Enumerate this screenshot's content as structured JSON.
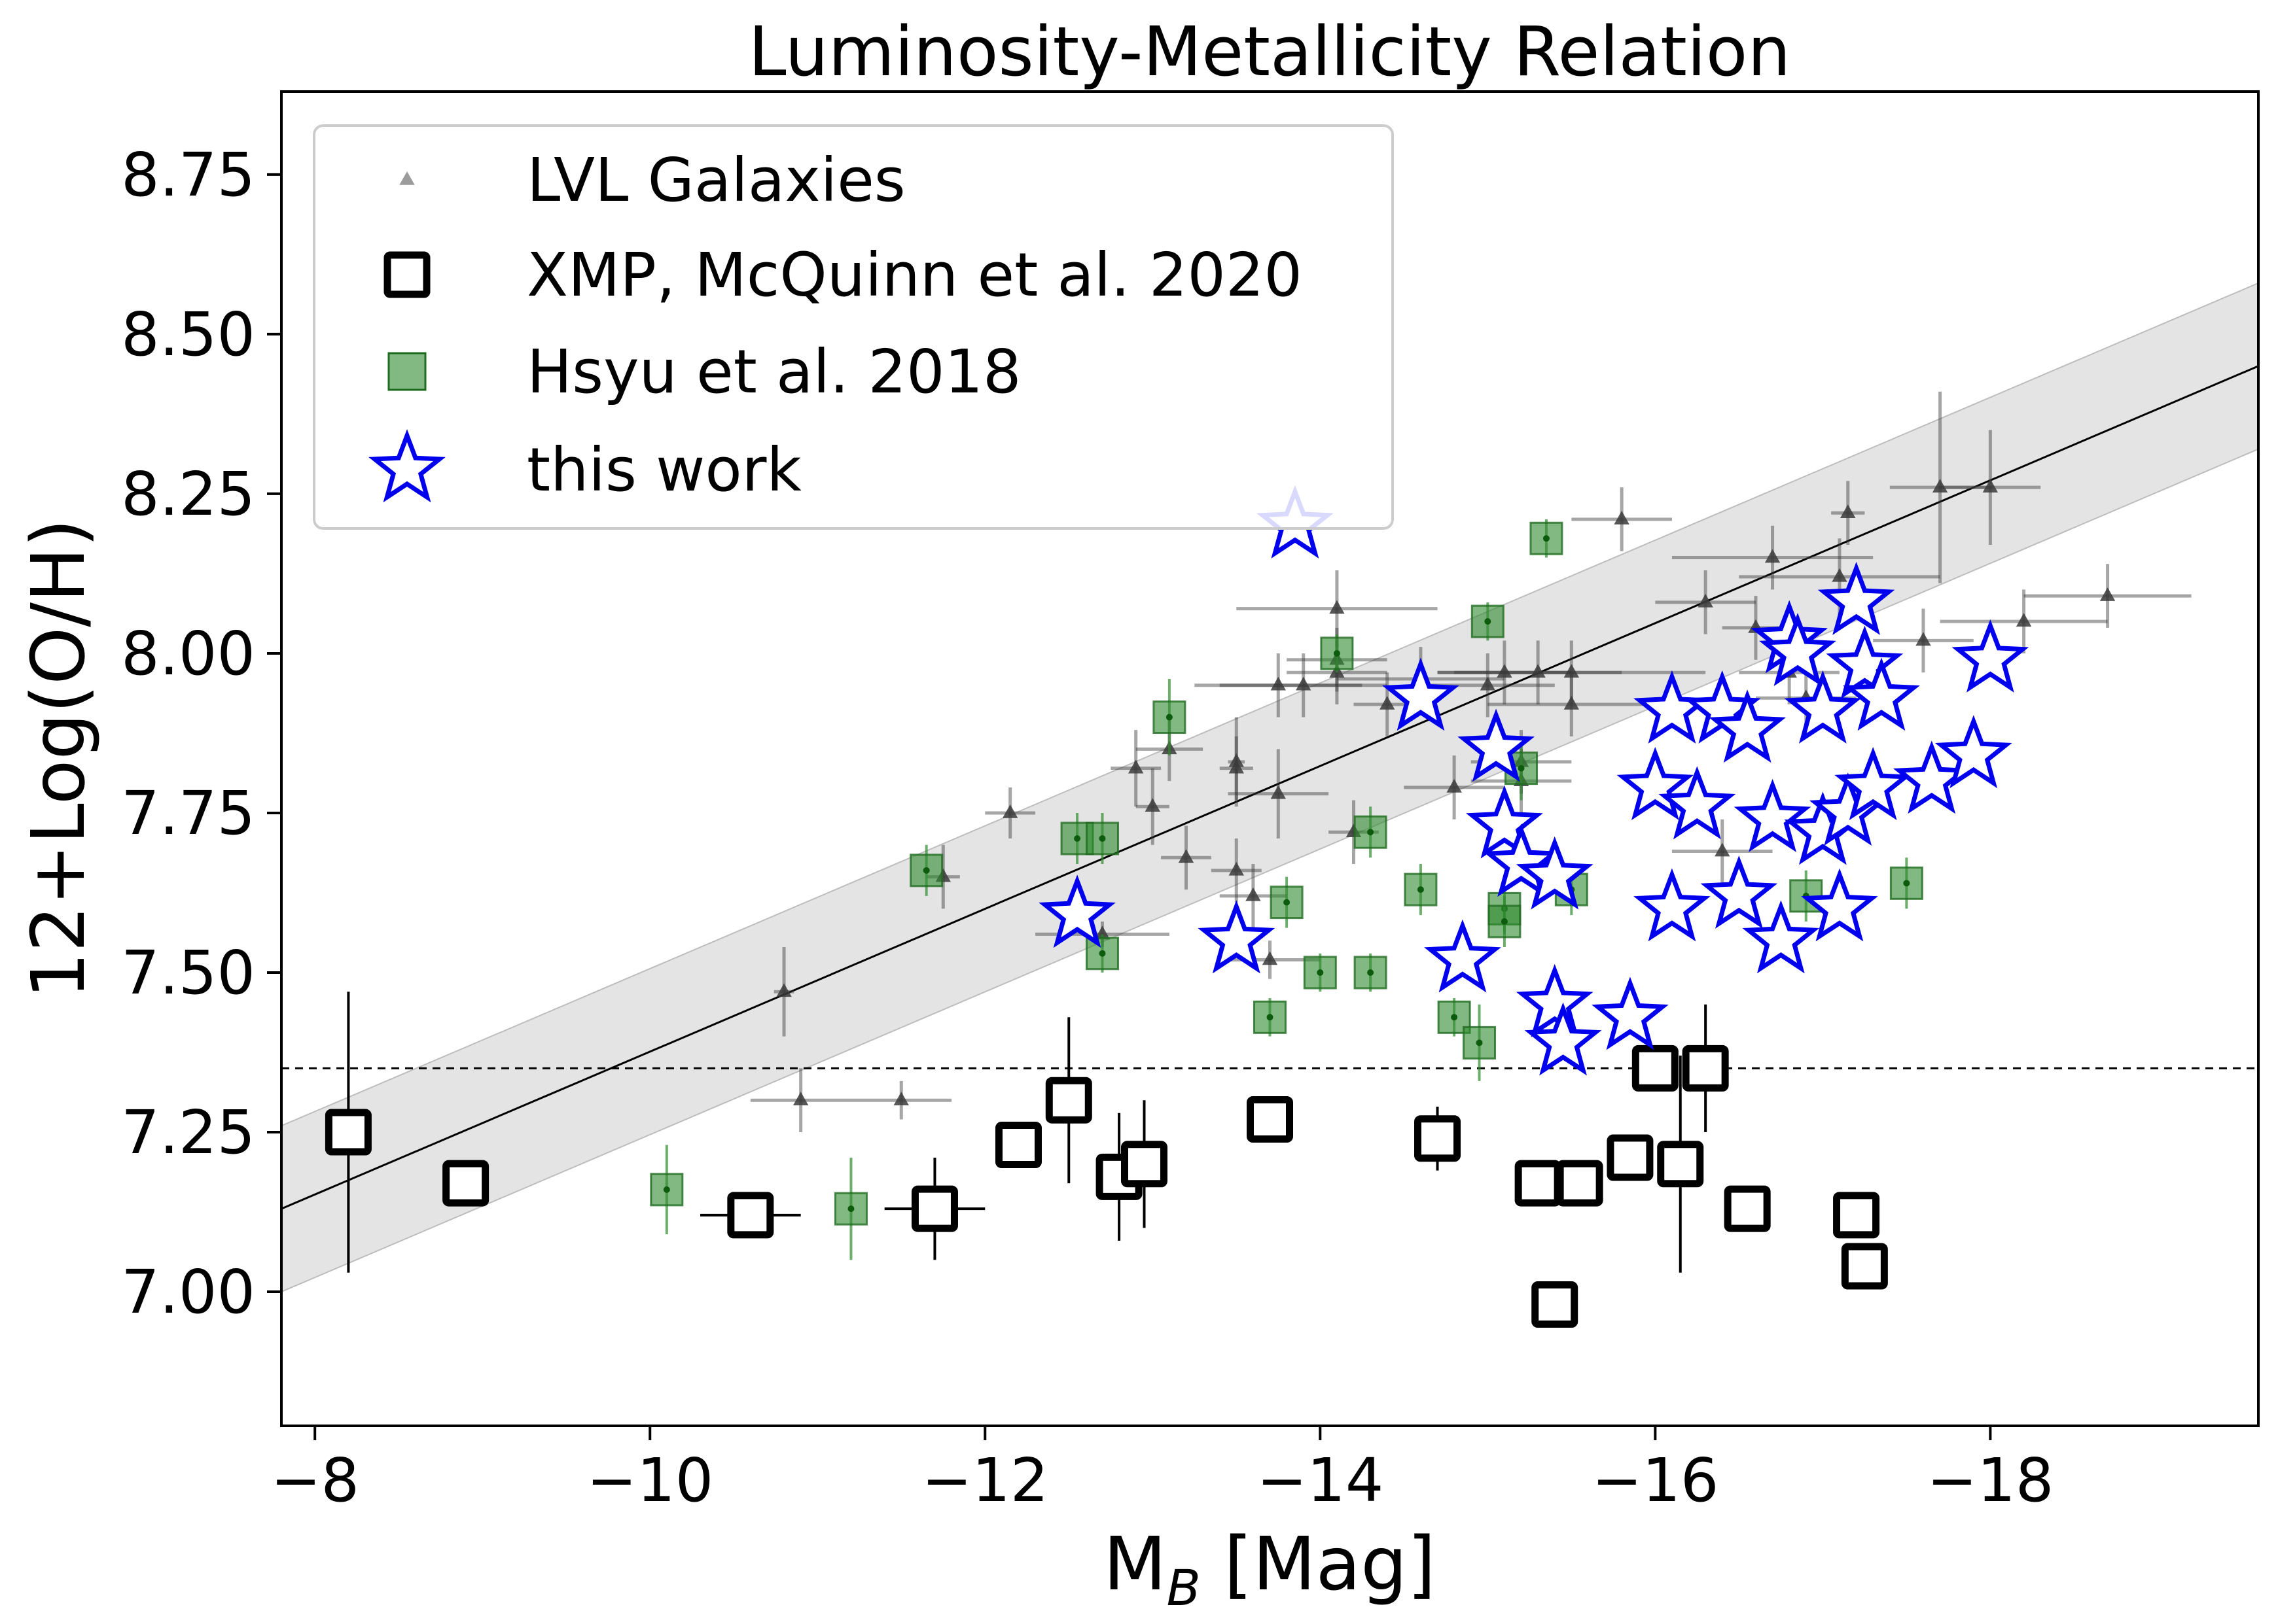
{
  "chart_data": {
    "type": "scatter",
    "title": "Luminosity-Metallicity Relation",
    "xlabel": {
      "main": "M",
      "sub": "B",
      "tail": " [Mag]"
    },
    "ylabel": "12+Log(O/H)",
    "xlim": [
      -7.8,
      -19.6
    ],
    "ylim": [
      6.79,
      8.88
    ],
    "x_inverted": true,
    "xticks": [
      -8,
      -10,
      -12,
      -14,
      -16,
      -18
    ],
    "xtick_labels": [
      "−8",
      "−10",
      "−12",
      "−14",
      "−16",
      "−18"
    ],
    "yticks": [
      7.0,
      7.25,
      7.5,
      7.75,
      8.0,
      8.25,
      8.5,
      8.75
    ],
    "ytick_labels": [
      "7.00",
      "7.25",
      "7.50",
      "7.75",
      "8.00",
      "8.25",
      "8.50",
      "8.75"
    ],
    "grid": false,
    "legend_placement": "top-left",
    "colors": {
      "lvl": "#3a3a3a",
      "xmp": "#000000",
      "hsyu": "#2e8b2e",
      "this_work": "#0000ee",
      "band": "#d9d9d9"
    },
    "fit_line": {
      "x": [
        -7.8,
        -19.6
      ],
      "y": [
        7.13,
        8.45
      ],
      "band_halfwidth": 0.13
    },
    "threshold_line": {
      "y": 7.35,
      "style": "dashed"
    },
    "series": [
      {
        "name": "LVL Galaxies",
        "marker": "triangle",
        "points": [
          [
            -10.8,
            7.47,
            0.06,
            0.07
          ],
          [
            -10.9,
            7.3,
            0.3,
            0.05
          ],
          [
            -11.5,
            7.3,
            0.3,
            0.03
          ],
          [
            -11.75,
            7.65,
            0.1,
            0.05
          ],
          [
            -12.15,
            7.75,
            0.15,
            0.04
          ],
          [
            -12.7,
            7.56,
            0.4,
            0.02
          ],
          [
            -12.9,
            7.82,
            0.15,
            0.06
          ],
          [
            -13.0,
            7.76,
            0.1,
            0.06
          ],
          [
            -13.1,
            7.85,
            0.2,
            0.05
          ],
          [
            -13.2,
            7.68,
            0.15,
            0.05
          ],
          [
            -13.5,
            7.83,
            0.05,
            0.07
          ],
          [
            -13.5,
            7.82,
            0.1,
            0.05
          ],
          [
            -13.5,
            7.66,
            0.15,
            0.05
          ],
          [
            -13.6,
            7.62,
            0.2,
            0.05
          ],
          [
            -13.7,
            7.52,
            0.3,
            0.03
          ],
          [
            -13.75,
            7.78,
            0.3,
            0.07
          ],
          [
            -13.75,
            7.95,
            0.5,
            0.05
          ],
          [
            -13.9,
            7.95,
            0.5,
            0.05
          ],
          [
            -14.1,
            8.07,
            0.6,
            0.06
          ],
          [
            -14.1,
            7.99,
            0.3,
            0.05
          ],
          [
            -14.1,
            7.97,
            0.3,
            0.05
          ],
          [
            -14.2,
            7.72,
            0.15,
            0.05
          ],
          [
            -14.4,
            7.92,
            0.2,
            0.05
          ],
          [
            -14.6,
            7.96,
            0.5,
            0.05
          ],
          [
            -14.8,
            7.79,
            0.3,
            0.05
          ],
          [
            -15.0,
            7.95,
            0.4,
            0.05
          ],
          [
            -15.1,
            7.97,
            0.4,
            0.05
          ],
          [
            -15.2,
            7.8,
            0.3,
            0.05
          ],
          [
            -15.2,
            7.83,
            0.3,
            0.05
          ],
          [
            -15.3,
            7.97,
            0.5,
            0.05
          ],
          [
            -15.5,
            7.97,
            0.8,
            0.05
          ],
          [
            -15.5,
            7.92,
            0.5,
            0.05
          ],
          [
            -15.8,
            8.21,
            0.3,
            0.05
          ],
          [
            -16.3,
            8.08,
            0.3,
            0.05
          ],
          [
            -16.4,
            7.69,
            0.3,
            0.05
          ],
          [
            -16.6,
            8.04,
            0.2,
            0.05
          ],
          [
            -16.7,
            8.15,
            0.6,
            0.05
          ],
          [
            -16.8,
            7.97,
            0.3,
            0.05
          ],
          [
            -16.9,
            7.93,
            0.3,
            0.05
          ],
          [
            -17.1,
            8.12,
            0.6,
            0.06
          ],
          [
            -17.15,
            8.22,
            0.1,
            0.05
          ],
          [
            -17.6,
            8.02,
            0.3,
            0.05
          ],
          [
            -17.7,
            8.26,
            0.3,
            0.15
          ],
          [
            -18.0,
            8.26,
            0.3,
            0.09
          ],
          [
            -18.2,
            8.05,
            0.5,
            0.05
          ],
          [
            -18.7,
            8.09,
            0.5,
            0.05
          ]
        ]
      },
      {
        "name": "XMP, McQuinn et al. 2020",
        "marker": "square-open",
        "points": [
          [
            -8.2,
            7.25,
            0,
            0.22
          ],
          [
            -8.9,
            7.17,
            0,
            0.03
          ],
          [
            -10.6,
            7.12,
            0.3,
            0.03
          ],
          [
            -11.7,
            7.13,
            0.3,
            0.08
          ],
          [
            -12.2,
            7.23,
            0,
            0.03
          ],
          [
            -12.5,
            7.3,
            0,
            0.13
          ],
          [
            -12.8,
            7.18,
            0,
            0.1
          ],
          [
            -12.95,
            7.2,
            0,
            0.1
          ],
          [
            -13.7,
            7.27,
            0,
            0.03
          ],
          [
            -14.7,
            7.24,
            0,
            0.05
          ],
          [
            -15.3,
            7.17,
            0,
            0.03
          ],
          [
            -15.55,
            7.17,
            0,
            0.03
          ],
          [
            -15.4,
            6.98,
            0,
            0.03
          ],
          [
            -15.85,
            7.21,
            0,
            0.03
          ],
          [
            -16.0,
            7.35,
            0,
            0.03
          ],
          [
            -16.3,
            7.35,
            0,
            0.1
          ],
          [
            -16.15,
            7.2,
            0,
            0.17
          ],
          [
            -16.55,
            7.13,
            0,
            0.03
          ],
          [
            -17.2,
            7.12,
            0,
            0.03
          ],
          [
            -17.25,
            7.04,
            0,
            0.03
          ]
        ]
      },
      {
        "name": "Hsyu et al. 2018",
        "marker": "square-filled",
        "points": [
          [
            -10.1,
            7.16,
            0,
            0.07
          ],
          [
            -11.2,
            7.13,
            0,
            0.08
          ],
          [
            -11.65,
            7.66,
            0,
            0.04
          ],
          [
            -12.55,
            7.71,
            0,
            0.04
          ],
          [
            -12.7,
            7.71,
            0,
            0.04
          ],
          [
            -12.7,
            7.53,
            0,
            0.03
          ],
          [
            -13.1,
            7.9,
            0,
            0.06
          ],
          [
            -13.8,
            7.61,
            0,
            0.04
          ],
          [
            -13.7,
            7.43,
            0,
            0.03
          ],
          [
            -14.0,
            7.5,
            0,
            0.03
          ],
          [
            -14.1,
            8.0,
            0,
            0.03
          ],
          [
            -14.3,
            7.5,
            0,
            0.03
          ],
          [
            -14.3,
            7.72,
            0,
            0.04
          ],
          [
            -14.6,
            7.63,
            0,
            0.04
          ],
          [
            -14.8,
            7.43,
            0,
            0.03
          ],
          [
            -14.95,
            7.39,
            0,
            0.06
          ],
          [
            -15.0,
            8.05,
            0,
            0.03
          ],
          [
            -15.1,
            7.6,
            0,
            0.04
          ],
          [
            -15.1,
            7.58,
            0,
            0.04
          ],
          [
            -15.2,
            7.82,
            0,
            0.05
          ],
          [
            -15.35,
            8.18,
            0,
            0.03
          ],
          [
            -15.5,
            7.63,
            0,
            0.04
          ],
          [
            -16.9,
            7.62,
            0,
            0.04
          ],
          [
            -17.5,
            7.64,
            0,
            0.04
          ]
        ]
      },
      {
        "name": "this work",
        "marker": "star-open",
        "points": [
          [
            -12.55,
            7.59
          ],
          [
            -13.5,
            7.55
          ],
          [
            -13.85,
            8.2
          ],
          [
            -14.6,
            7.93
          ],
          [
            -14.85,
            7.52
          ],
          [
            -15.05,
            7.85
          ],
          [
            -15.1,
            7.73
          ],
          [
            -15.2,
            7.67
          ],
          [
            -15.4,
            7.65
          ],
          [
            -15.4,
            7.45
          ],
          [
            -15.45,
            7.39
          ],
          [
            -15.85,
            7.43
          ],
          [
            -16.0,
            7.79
          ],
          [
            -16.1,
            7.91
          ],
          [
            -16.1,
            7.6
          ],
          [
            -16.25,
            7.76
          ],
          [
            -16.4,
            7.91
          ],
          [
            -16.5,
            7.62
          ],
          [
            -16.55,
            7.88
          ],
          [
            -16.7,
            7.74
          ],
          [
            -16.75,
            7.55
          ],
          [
            -16.8,
            8.02
          ],
          [
            -16.85,
            8.0
          ],
          [
            -17.0,
            7.72
          ],
          [
            -17.0,
            7.91
          ],
          [
            -17.1,
            7.6
          ],
          [
            -17.15,
            7.75
          ],
          [
            -17.2,
            8.08
          ],
          [
            -17.25,
            7.98
          ],
          [
            -17.35,
            7.93
          ],
          [
            -17.3,
            7.79
          ],
          [
            -17.65,
            7.8
          ],
          [
            -17.9,
            7.84
          ],
          [
            -18.0,
            7.99
          ]
        ]
      }
    ]
  }
}
